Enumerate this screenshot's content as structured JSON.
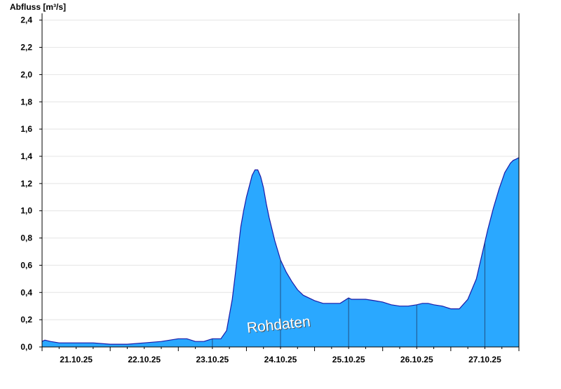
{
  "chart_data": {
    "type": "area",
    "title": "",
    "xlabel": "",
    "ylabel": "Abfluss [m³/s]",
    "ylim": [
      0,
      2.45
    ],
    "xlim": [
      "2025-10-20T12:00",
      "2025-10-27T12:00"
    ],
    "yticks": [
      "0,0",
      "0,2",
      "0,4",
      "0,6",
      "0,8",
      "1,0",
      "1,2",
      "1,4",
      "1,6",
      "1,8",
      "2,0",
      "2,2",
      "2,4"
    ],
    "xticks": [
      "21.10.25",
      "22.10.25",
      "23.10.25",
      "24.10.25",
      "25.10.25",
      "26.10.25",
      "27.10.25"
    ],
    "grid": true,
    "legend": "none",
    "annotation": "Rohdaten",
    "colors": {
      "area": "#2aa8ff",
      "line": "#1a1aa8",
      "grid": "#e4e4e4",
      "axis": "#000000"
    },
    "series": [
      {
        "x": [
          "2025-10-20T12:00",
          "2025-10-20T13:00",
          "2025-10-20T15:00",
          "2025-10-20T18:00",
          "2025-10-21T00:00",
          "2025-10-21T06:00",
          "2025-10-21T12:00",
          "2025-10-21T18:00",
          "2025-10-22T00:00",
          "2025-10-22T06:00",
          "2025-10-22T12:00",
          "2025-10-22T15:00",
          "2025-10-22T18:00",
          "2025-10-22T21:00",
          "2025-10-23T00:00",
          "2025-10-23T03:00",
          "2025-10-23T05:00",
          "2025-10-23T07:00",
          "2025-10-23T08:00",
          "2025-10-23T09:00",
          "2025-10-23T10:00",
          "2025-10-23T11:00",
          "2025-10-23T12:00",
          "2025-10-23T13:00",
          "2025-10-23T14:00",
          "2025-10-23T15:00",
          "2025-10-23T16:00",
          "2025-10-23T17:00",
          "2025-10-23T18:00",
          "2025-10-23T19:00",
          "2025-10-23T20:00",
          "2025-10-23T22:00",
          "2025-10-24T00:00",
          "2025-10-24T02:00",
          "2025-10-24T04:00",
          "2025-10-24T06:00",
          "2025-10-24T08:00",
          "2025-10-24T10:00",
          "2025-10-24T12:00",
          "2025-10-24T15:00",
          "2025-10-24T18:00",
          "2025-10-24T21:00",
          "2025-10-25T00:00",
          "2025-10-25T01:00",
          "2025-10-25T03:00",
          "2025-10-25T06:00",
          "2025-10-25T09:00",
          "2025-10-25T12:00",
          "2025-10-25T15:00",
          "2025-10-25T18:00",
          "2025-10-25T21:00",
          "2025-10-26T00:00",
          "2025-10-26T02:00",
          "2025-10-26T04:00",
          "2025-10-26T06:00",
          "2025-10-26T09:00",
          "2025-10-26T12:00",
          "2025-10-26T15:00",
          "2025-10-26T18:00",
          "2025-10-26T21:00",
          "2025-10-26T23:00",
          "2025-10-27T01:00",
          "2025-10-27T03:00",
          "2025-10-27T05:00",
          "2025-10-27T07:00",
          "2025-10-27T09:00",
          "2025-10-27T10:00",
          "2025-10-27T11:00",
          "2025-10-27T12:00"
        ],
        "values": [
          0.04,
          0.05,
          0.04,
          0.03,
          0.03,
          0.03,
          0.02,
          0.02,
          0.03,
          0.04,
          0.06,
          0.06,
          0.04,
          0.04,
          0.06,
          0.06,
          0.12,
          0.35,
          0.52,
          0.7,
          0.88,
          1.0,
          1.1,
          1.18,
          1.26,
          1.3,
          1.3,
          1.25,
          1.17,
          1.05,
          0.95,
          0.78,
          0.64,
          0.55,
          0.48,
          0.42,
          0.38,
          0.36,
          0.34,
          0.32,
          0.32,
          0.32,
          0.36,
          0.35,
          0.35,
          0.35,
          0.34,
          0.33,
          0.31,
          0.3,
          0.3,
          0.31,
          0.32,
          0.32,
          0.31,
          0.3,
          0.28,
          0.28,
          0.35,
          0.5,
          0.68,
          0.86,
          1.02,
          1.16,
          1.28,
          1.35,
          1.37,
          1.38,
          1.39
        ]
      }
    ]
  }
}
